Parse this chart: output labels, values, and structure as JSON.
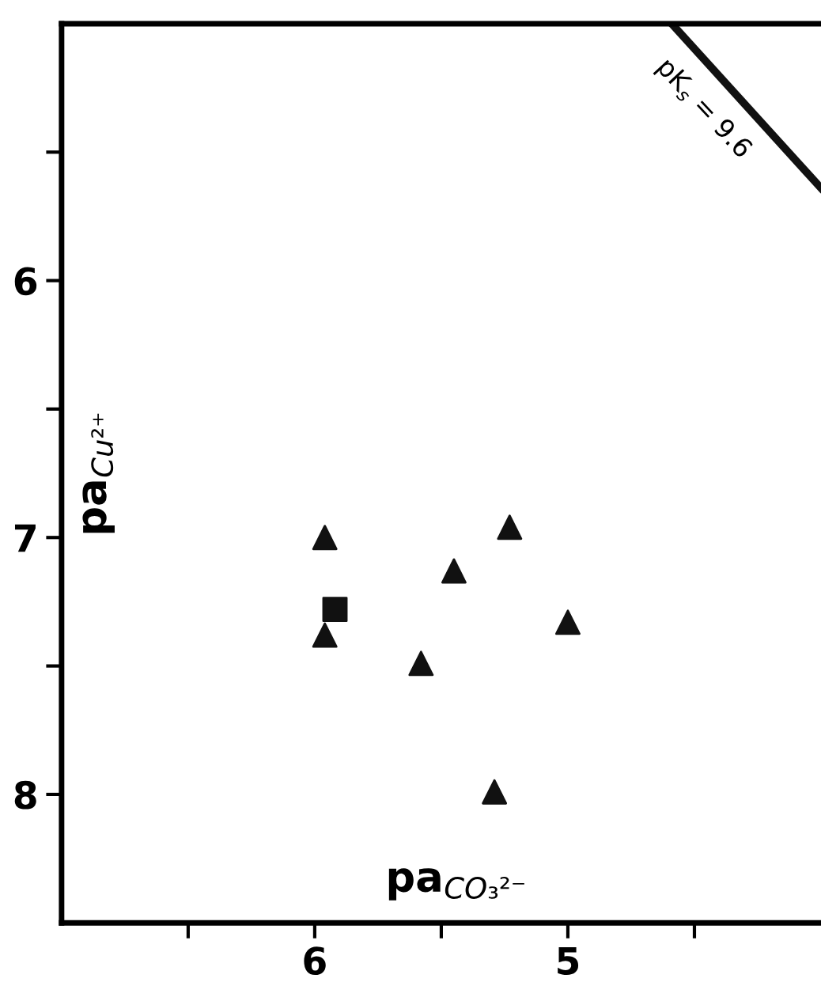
{
  "chart_data": {
    "type": "scatter",
    "xlabel": "pa$_{CO₃²⁻}$",
    "ylabel": "pa$_{Cu²⁺}$",
    "xlim": [
      7,
      4
    ],
    "ylim": [
      8.5,
      5
    ],
    "xticks": [
      {
        "value": 6.5,
        "label": null
      },
      6,
      {
        "value": 5.5,
        "label": null
      },
      5,
      {
        "value": 4.5,
        "label": null
      }
    ],
    "yticks": [
      {
        "value": 5.5,
        "label": null
      },
      6,
      {
        "value": 6.5,
        "label": null
      },
      7,
      {
        "value": 7.5,
        "label": null
      },
      8
    ],
    "grid": false,
    "legend": false,
    "series": [
      {
        "marker": "triangle",
        "color": "#111111",
        "x": [
          5.96,
          5.96,
          5.23,
          5.45,
          5.0,
          5.58,
          5.29
        ],
        "values": [
          7.0,
          7.38,
          6.96,
          7.13,
          7.33,
          7.49,
          7.99
        ]
      },
      {
        "marker": "square",
        "color": "#111111",
        "x": [
          5.92
        ],
        "values": [
          7.28
        ]
      },
      {
        "type": "line",
        "line_style": "solid",
        "color": "#111111",
        "x": [
          4.59,
          4.0
        ],
        "values": [
          5.0,
          5.64
        ]
      }
    ],
    "annotations": [
      "pK$_{s}$ = 9.6"
    ]
  }
}
